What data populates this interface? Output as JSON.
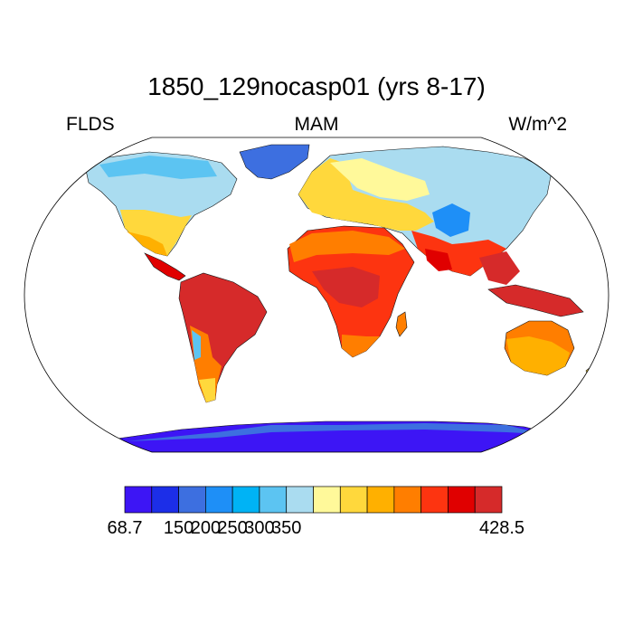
{
  "title": "1850_129nocasp01 (yrs 8-17)",
  "left_label": "FLDS",
  "center_label": "MAM",
  "right_label": "W/m^2",
  "colorbar": {
    "colors": [
      "#3d15f5",
      "#1c2ee8",
      "#3d6fe0",
      "#1e8ff7",
      "#00b3f5",
      "#5cc4f2",
      "#aadcf0",
      "#fff99a",
      "#ffd83c",
      "#ffb000",
      "#ff7e00",
      "#fd3410",
      "#e00000",
      "#d62a2a"
    ],
    "labels": [
      {
        "text": "68.7",
        "edge": 0
      },
      {
        "text": "150",
        "edge": 2
      },
      {
        "text": "200",
        "edge": 3
      },
      {
        "text": "250",
        "edge": 4
      },
      {
        "text": "300",
        "edge": 5
      },
      {
        "text": "350",
        "edge": 6
      },
      {
        "text": "428.5",
        "edge": 14
      }
    ]
  }
}
